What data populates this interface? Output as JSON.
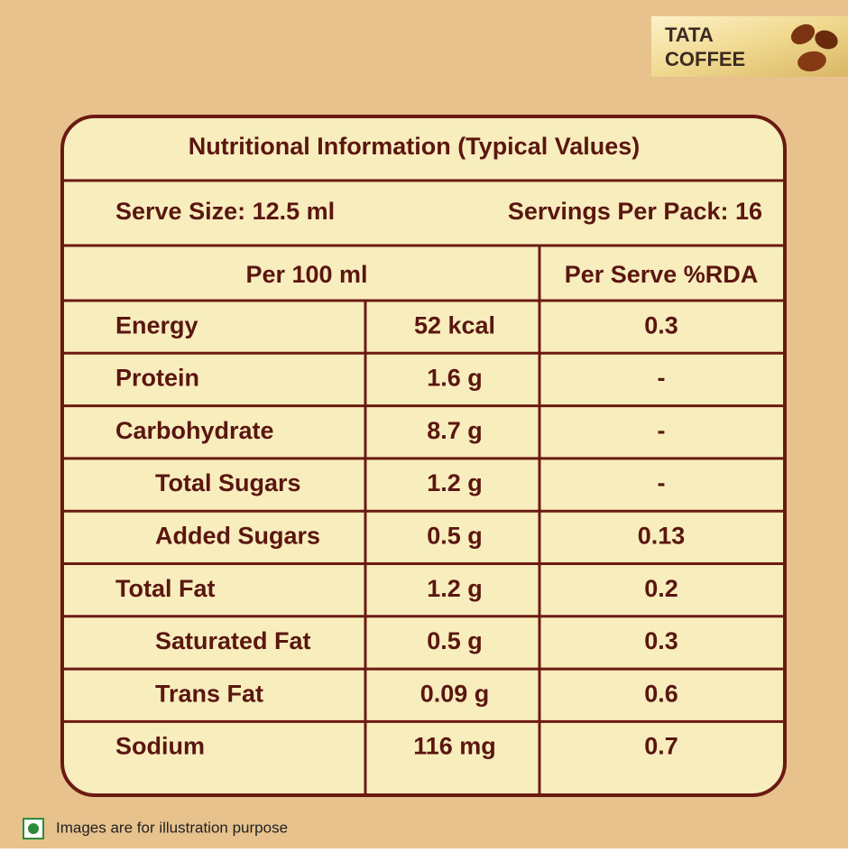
{
  "logo": {
    "line1": "TATA",
    "line2": "COFFEE"
  },
  "table": {
    "title": "Nutritional Information (Typical Values)",
    "serve_size": "Serve Size: 12.5 ml",
    "servings": "Servings Per Pack: 16",
    "header": [
      "Per 100 ml",
      "Per Serve %RDA"
    ],
    "rows": [
      [
        "Energy",
        "52 kcal",
        "0.3"
      ],
      [
        "Protein",
        "1.6 g",
        "-"
      ],
      [
        "Carbohydrate",
        "8.7 g",
        "-"
      ],
      [
        "Total Sugars",
        "1.2 g",
        "-"
      ],
      [
        "Added Sugars",
        "0.5 g",
        "0.13"
      ],
      [
        "Total Fat",
        "1.2 g",
        "0.2"
      ],
      [
        "Saturated Fat",
        "0.5 g",
        "0.3"
      ],
      [
        "Trans Fat",
        "0.09 g",
        "0.6"
      ],
      [
        "Sodium",
        "116 mg",
        "0.7"
      ]
    ]
  },
  "footer": {
    "note": "Images are for illustration purpose"
  }
}
